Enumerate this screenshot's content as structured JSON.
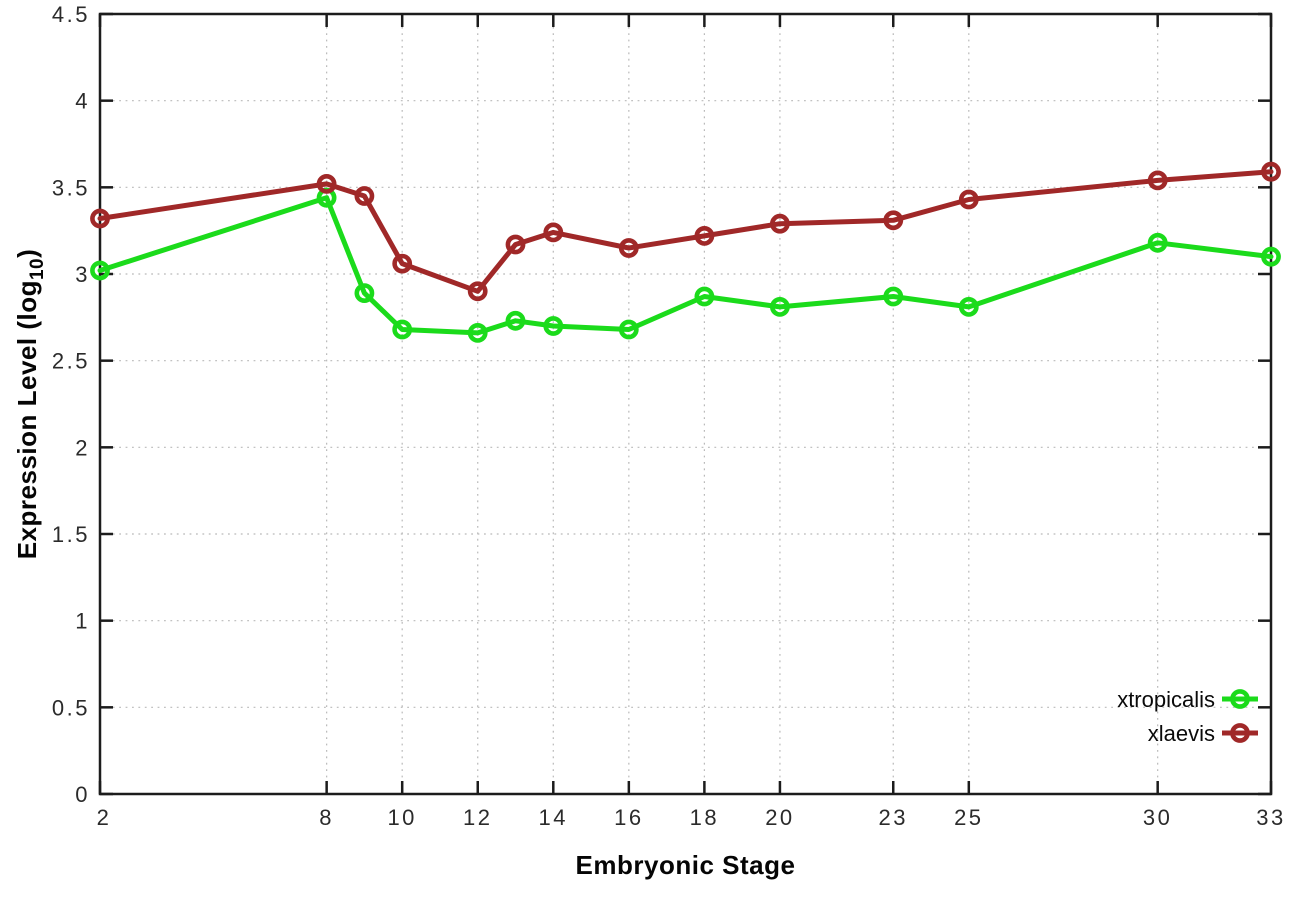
{
  "page": {
    "background": "#ffffff"
  },
  "chart_data": {
    "type": "line",
    "title": "",
    "xlabel": "Embryonic Stage",
    "ylabel": {
      "prefix": "Expression Level (log",
      "sub": "10",
      "suffix": ")"
    },
    "xlim": [
      2,
      33
    ],
    "ylim": [
      0,
      4.5
    ],
    "x_ticks": [
      {
        "value": 2,
        "label": "2"
      },
      {
        "value": 8,
        "label": "8"
      },
      {
        "value": 10,
        "label": "10"
      },
      {
        "value": 12,
        "label": "12"
      },
      {
        "value": 14,
        "label": "14"
      },
      {
        "value": 16,
        "label": "16"
      },
      {
        "value": 18,
        "label": "18"
      },
      {
        "value": 20,
        "label": "20"
      },
      {
        "value": 23,
        "label": "23"
      },
      {
        "value": 25,
        "label": "25"
      },
      {
        "value": 30,
        "label": "30"
      },
      {
        "value": 33,
        "label": "33"
      }
    ],
    "y_ticks": [
      {
        "value": 0,
        "label": "0"
      },
      {
        "value": 0.5,
        "label": "0.5"
      },
      {
        "value": 1,
        "label": "1"
      },
      {
        "value": 1.5,
        "label": "1.5"
      },
      {
        "value": 2,
        "label": "2"
      },
      {
        "value": 2.5,
        "label": "2.5"
      },
      {
        "value": 3,
        "label": "3"
      },
      {
        "value": 3.5,
        "label": "3.5"
      },
      {
        "value": 4,
        "label": "4"
      },
      {
        "value": 4.5,
        "label": "4.5"
      }
    ],
    "grid": true,
    "legend_position": "bottom-right",
    "x": [
      2,
      8,
      9,
      10,
      12,
      13,
      14,
      16,
      18,
      20,
      23,
      25,
      30,
      33
    ],
    "series": [
      {
        "name": "xtropicalis",
        "color": "#1bdb1b",
        "values": [
          3.02,
          3.44,
          2.89,
          2.68,
          2.66,
          2.73,
          2.7,
          2.68,
          2.87,
          2.81,
          2.87,
          2.81,
          3.18,
          3.1
        ]
      },
      {
        "name": "xlaevis",
        "color": "#a02828",
        "values": [
          3.32,
          3.52,
          3.45,
          3.06,
          2.9,
          3.17,
          3.24,
          3.15,
          3.22,
          3.29,
          3.31,
          3.43,
          3.54,
          3.59
        ]
      }
    ],
    "colors": {
      "grid": "#b9b9b9",
      "axis": "#1c1c1c"
    }
  }
}
